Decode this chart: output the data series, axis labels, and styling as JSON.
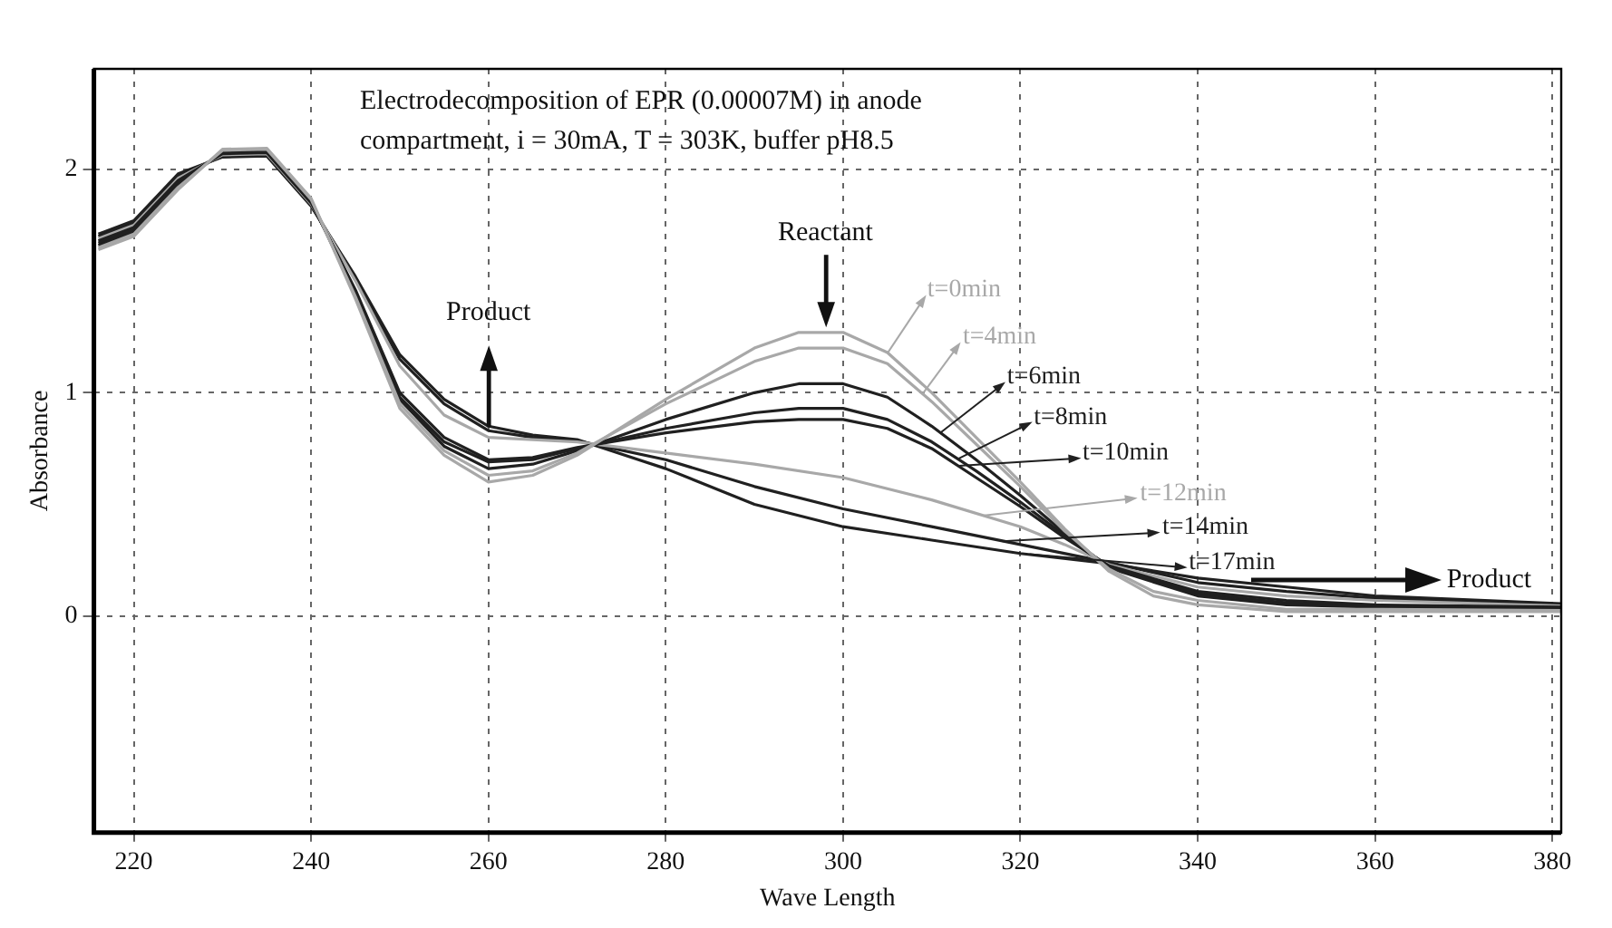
{
  "chart_data": {
    "type": "line",
    "title": "Electrodecomposition of EPR (0.00007M) in anode compartment, i = 30mA, T = 303K, buffer pH8.5",
    "xlabel": "Wave Length",
    "ylabel": "Absorbance",
    "xlim": [
      215.5,
      381
    ],
    "xticks": [
      220,
      240,
      260,
      280,
      300,
      320,
      340,
      360,
      380
    ],
    "ylim": [
      -0.97,
      2.45
    ],
    "yticks": [
      0,
      1,
      2
    ],
    "grid": true,
    "legend": "right",
    "marker": "none",
    "line_style": "solid",
    "series": [
      {
        "name": "t=0min",
        "color": "#a8a8a8",
        "x": [
          216,
          220,
          225,
          230,
          235,
          240,
          245,
          250,
          255,
          260,
          265,
          270,
          280,
          290,
          295,
          300,
          305,
          310,
          315,
          320,
          325,
          330,
          335,
          340,
          350,
          360,
          370,
          381
        ],
        "values": [
          1.64,
          1.7,
          1.91,
          2.09,
          2.095,
          1.87,
          1.42,
          0.93,
          0.72,
          0.6,
          0.63,
          0.72,
          0.97,
          1.2,
          1.27,
          1.27,
          1.18,
          1.0,
          0.8,
          0.6,
          0.39,
          0.2,
          0.09,
          0.05,
          0.02,
          0.02,
          0.02,
          0.02
        ]
      },
      {
        "name": "t=4min",
        "color": "#a8a8a8",
        "x": [
          216,
          220,
          225,
          230,
          235,
          240,
          245,
          250,
          255,
          260,
          265,
          270,
          280,
          290,
          295,
          300,
          305,
          310,
          315,
          320,
          325,
          330,
          335,
          340,
          350,
          360,
          381
        ],
        "values": [
          1.65,
          1.71,
          1.92,
          2.085,
          2.09,
          1.865,
          1.43,
          0.95,
          0.74,
          0.63,
          0.65,
          0.73,
          0.95,
          1.14,
          1.2,
          1.2,
          1.13,
          0.96,
          0.77,
          0.58,
          0.38,
          0.21,
          0.11,
          0.07,
          0.03,
          0.03,
          0.025
        ]
      },
      {
        "name": "t=6min",
        "color": "#202020",
        "x": [
          216,
          220,
          225,
          230,
          235,
          240,
          245,
          250,
          255,
          260,
          265,
          270,
          280,
          290,
          295,
          300,
          305,
          310,
          315,
          320,
          325,
          330,
          340,
          350,
          360,
          381
        ],
        "values": [
          1.66,
          1.72,
          1.93,
          2.08,
          2.085,
          1.86,
          1.44,
          0.97,
          0.76,
          0.66,
          0.68,
          0.74,
          0.88,
          1.0,
          1.04,
          1.04,
          0.98,
          0.85,
          0.7,
          0.54,
          0.37,
          0.215,
          0.09,
          0.05,
          0.04,
          0.03
        ]
      },
      {
        "name": "t=8min",
        "color": "#202020",
        "x": [
          216,
          220,
          225,
          230,
          235,
          240,
          245,
          250,
          255,
          260,
          265,
          270,
          280,
          290,
          295,
          300,
          305,
          310,
          315,
          320,
          325,
          330,
          340,
          350,
          360,
          381
        ],
        "values": [
          1.67,
          1.73,
          1.94,
          2.075,
          2.08,
          1.855,
          1.45,
          0.98,
          0.78,
          0.69,
          0.7,
          0.75,
          0.84,
          0.91,
          0.93,
          0.93,
          0.88,
          0.78,
          0.65,
          0.51,
          0.36,
          0.22,
          0.1,
          0.06,
          0.045,
          0.035
        ]
      },
      {
        "name": "t=10min",
        "color": "#202020",
        "x": [
          216,
          220,
          225,
          230,
          235,
          240,
          245,
          250,
          255,
          260,
          265,
          270,
          280,
          290,
          295,
          300,
          305,
          310,
          315,
          320,
          325,
          330,
          340,
          350,
          360,
          381
        ],
        "values": [
          1.68,
          1.74,
          1.95,
          2.07,
          2.075,
          1.85,
          1.46,
          1.0,
          0.8,
          0.7,
          0.71,
          0.755,
          0.82,
          0.87,
          0.88,
          0.88,
          0.84,
          0.75,
          0.62,
          0.49,
          0.35,
          0.225,
          0.11,
          0.07,
          0.05,
          0.04
        ]
      },
      {
        "name": "t=12min",
        "color": "#a8a8a8",
        "x": [
          216,
          220,
          225,
          230,
          235,
          240,
          245,
          250,
          255,
          260,
          265,
          270,
          280,
          290,
          300,
          310,
          320,
          325,
          330,
          340,
          350,
          360,
          381
        ],
        "values": [
          1.69,
          1.75,
          1.96,
          2.065,
          2.07,
          1.845,
          1.5,
          1.12,
          0.9,
          0.8,
          0.79,
          0.78,
          0.73,
          0.68,
          0.62,
          0.52,
          0.4,
          0.32,
          0.23,
          0.13,
          0.09,
          0.07,
          0.045
        ]
      },
      {
        "name": "t=14min",
        "color": "#202020",
        "x": [
          216,
          220,
          225,
          230,
          235,
          240,
          245,
          250,
          255,
          260,
          265,
          270,
          280,
          290,
          300,
          310,
          320,
          330,
          340,
          350,
          360,
          381
        ],
        "values": [
          1.7,
          1.76,
          1.97,
          2.06,
          2.065,
          1.84,
          1.51,
          1.15,
          0.95,
          0.83,
          0.8,
          0.785,
          0.7,
          0.58,
          0.48,
          0.4,
          0.32,
          0.24,
          0.15,
          0.11,
          0.08,
          0.05
        ]
      },
      {
        "name": "t=17min",
        "color": "#202020",
        "x": [
          216,
          220,
          225,
          230,
          235,
          240,
          245,
          250,
          255,
          260,
          265,
          270,
          280,
          290,
          300,
          310,
          320,
          330,
          340,
          350,
          360,
          381
        ],
        "values": [
          1.71,
          1.77,
          1.98,
          2.055,
          2.06,
          1.835,
          1.52,
          1.17,
          0.97,
          0.85,
          0.81,
          0.79,
          0.66,
          0.5,
          0.4,
          0.34,
          0.28,
          0.235,
          0.17,
          0.13,
          0.09,
          0.055
        ]
      }
    ],
    "annotations": [
      "Product",
      "Reactant",
      {
        "text": "Product",
        "x": 346,
        "y": 0.16
      }
    ]
  }
}
